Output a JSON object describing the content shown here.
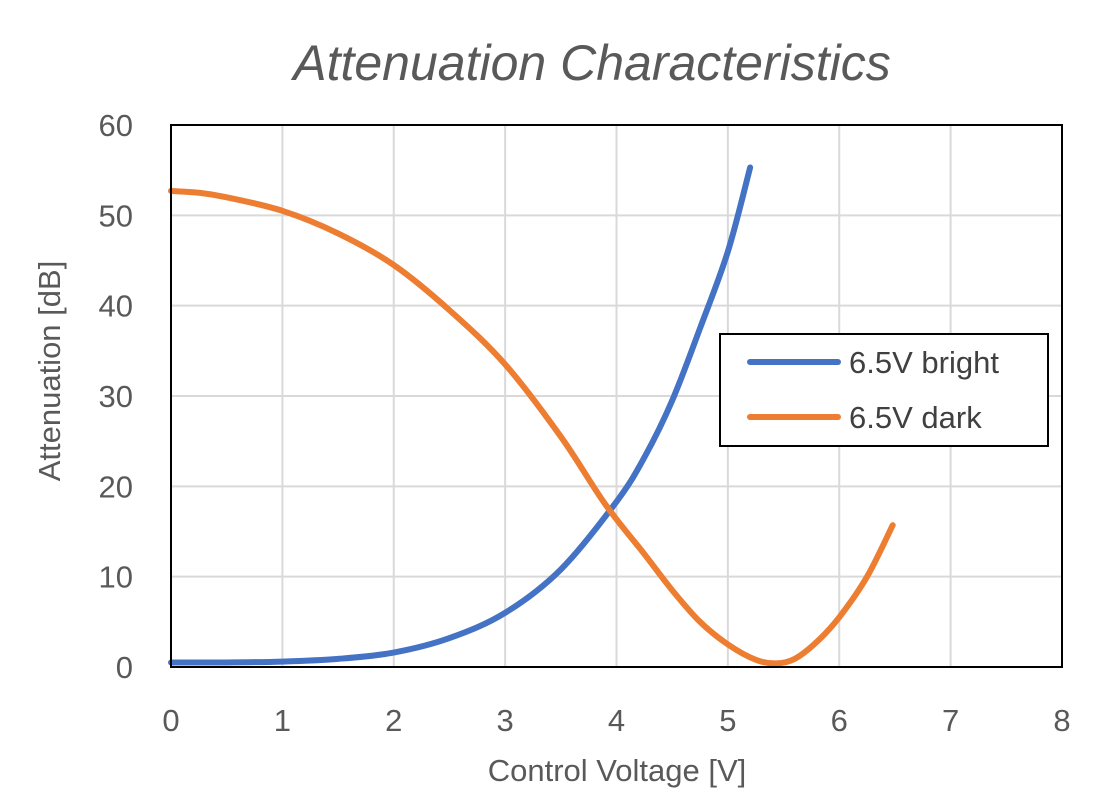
{
  "chart_data": {
    "type": "line",
    "title": "Attenuation Characteristics",
    "xlabel": "Control Voltage [V]",
    "ylabel": "Attenuation [dB]",
    "xlim": [
      0,
      8
    ],
    "ylim": [
      0,
      60
    ],
    "x_ticks": [
      "0",
      "1",
      "2",
      "3",
      "4",
      "5",
      "6",
      "7",
      "8"
    ],
    "y_ticks": [
      "0",
      "10",
      "20",
      "30",
      "40",
      "50",
      "60"
    ],
    "grid": true,
    "legend_position": "right",
    "series": [
      {
        "name": "6.5V bright",
        "color": "#4472C4",
        "x": [
          0,
          0.5,
          1.0,
          1.5,
          2.0,
          2.5,
          3.0,
          3.5,
          4.0,
          4.25,
          4.5,
          4.75,
          5.0,
          5.2
        ],
        "y": [
          0.5,
          0.5,
          0.6,
          0.9,
          1.6,
          3.2,
          6.0,
          10.8,
          18.3,
          23.2,
          29.5,
          37.5,
          46.0,
          55.3
        ]
      },
      {
        "name": "6.5V dark",
        "color": "#ED7D31",
        "x": [
          0,
          0.25,
          0.5,
          1.0,
          1.5,
          2.0,
          2.5,
          3.0,
          3.5,
          3.9,
          4.25,
          4.5,
          4.75,
          5.0,
          5.25,
          5.43,
          5.6,
          5.8,
          6.0,
          6.25,
          6.48
        ],
        "y": [
          52.7,
          52.5,
          52.0,
          50.5,
          48.0,
          44.5,
          39.5,
          33.5,
          25.5,
          18.0,
          12.5,
          8.5,
          5.0,
          2.5,
          0.8,
          0.4,
          0.9,
          2.8,
          5.5,
          10.0,
          15.7
        ]
      }
    ]
  }
}
